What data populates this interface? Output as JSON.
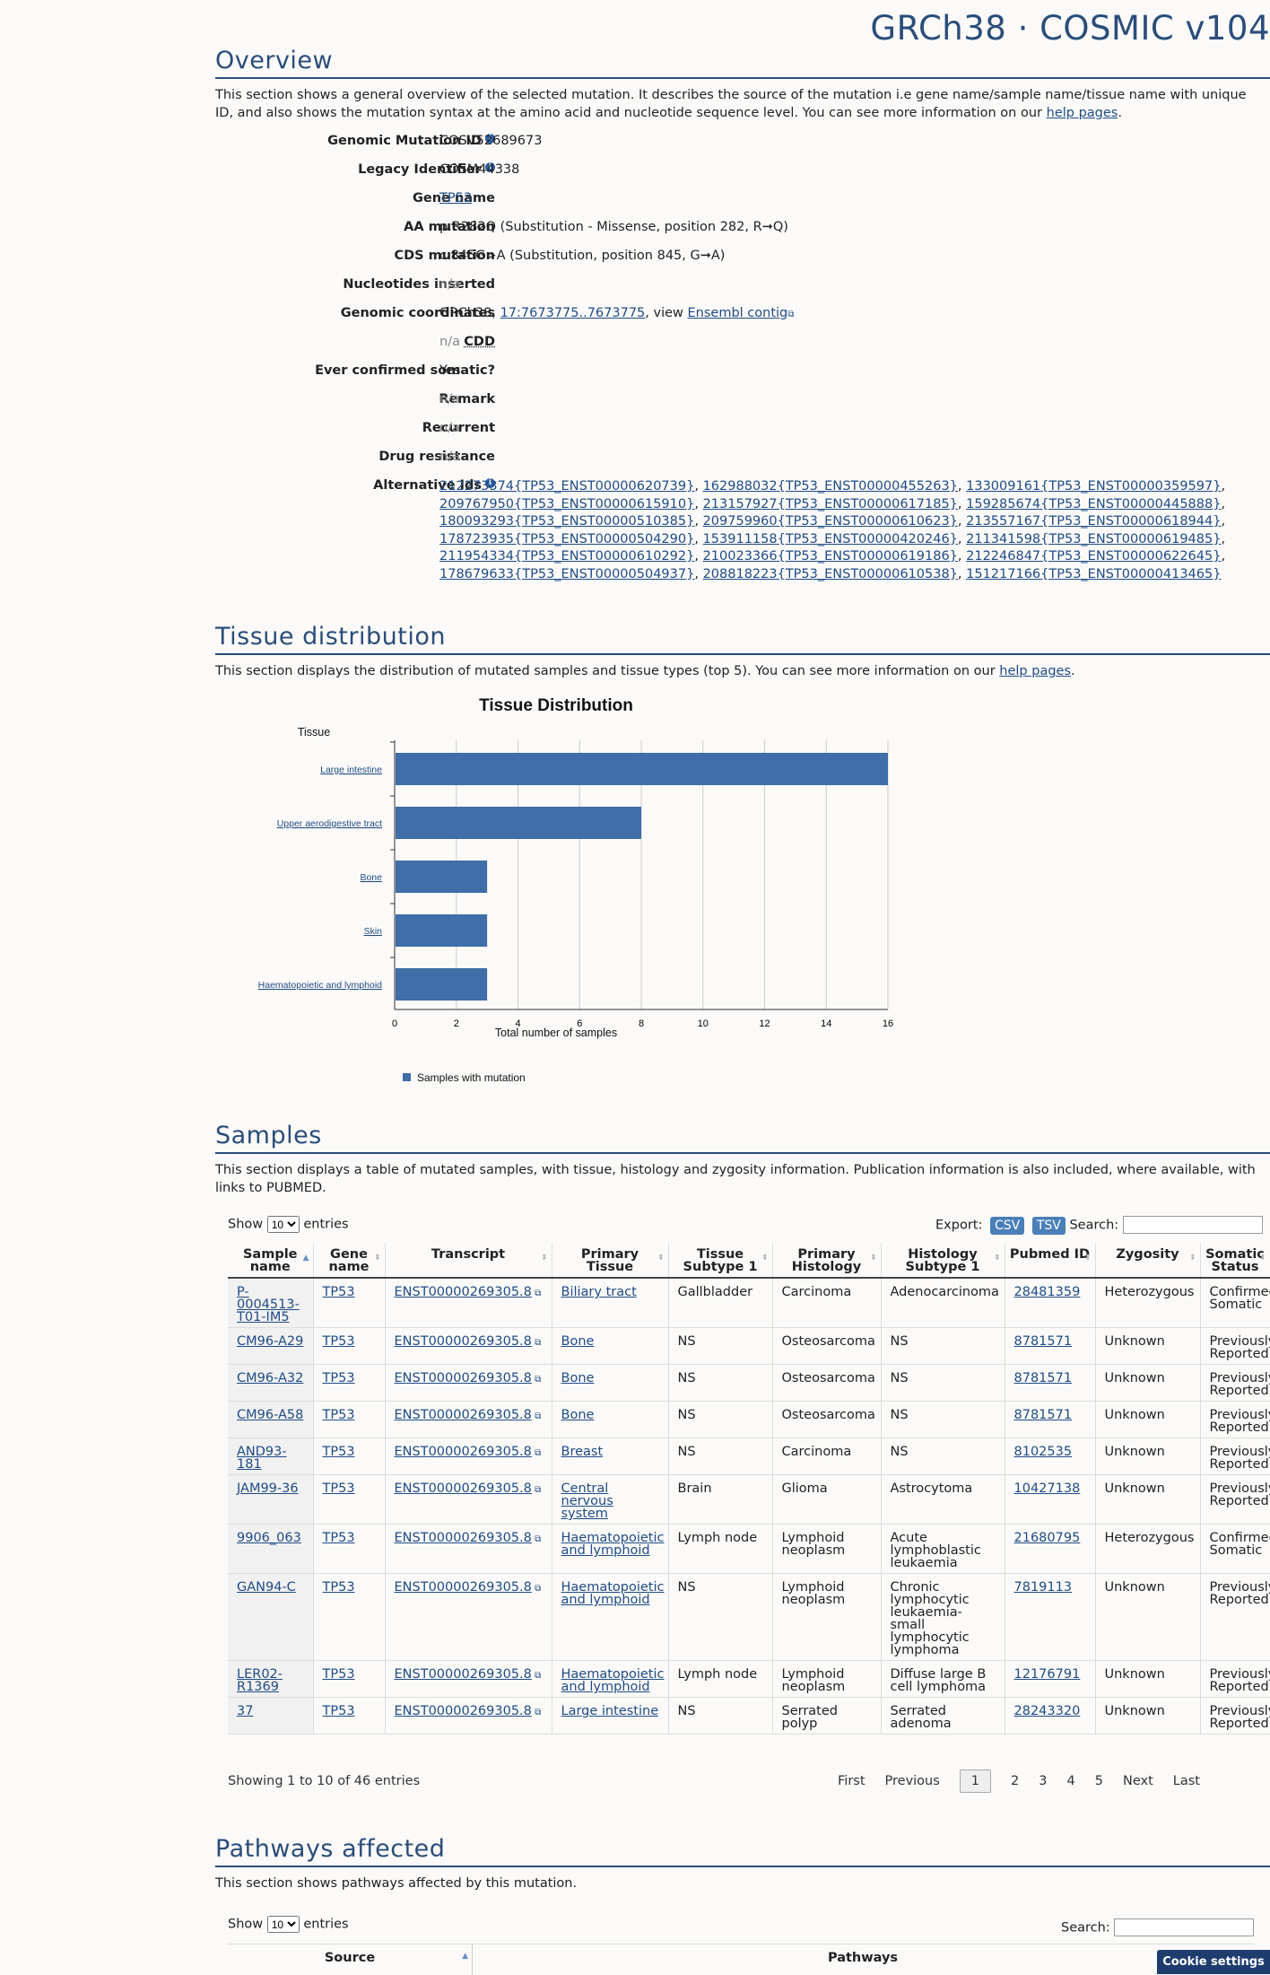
{
  "header": {
    "title": "GRCh38 · COSMIC v104"
  },
  "overview": {
    "heading": "Overview",
    "desc_main": "This section shows a general overview of the selected mutation. It describes the source of the mutation i.e gene name/sample name/tissue name with unique ID, and also shows the mutation syntax at the amino acid and nucleotide sequence level. You can see more information on our ",
    "desc_link": "help pages",
    "desc_end": ".",
    "rows": {
      "genomic_mutation_id": {
        "label": "Genomic Mutation ID",
        "value": "COSV52689673"
      },
      "legacy_identifier": {
        "label": "Legacy Identifier",
        "value": "COSM44338"
      },
      "gene_name": {
        "label": "Gene name",
        "value": "TP53"
      },
      "aa_mutation": {
        "label": "AA mutation",
        "value": "p.R282Q (Substitution - Missense, position 282, R➞Q)"
      },
      "cds_mutation": {
        "label": "CDS mutation",
        "value": "c.845G>A (Substitution, position 845, G➞A)"
      },
      "nucleotides_inserted": {
        "label": "Nucleotides inserted",
        "value": "n/a"
      },
      "genomic_coordinates": {
        "label": "Genomic coordinates",
        "prefix": "GRCh38, ",
        "coord_link": "17:7673775..7673775",
        "mid": ", view ",
        "ensembl_link": "Ensembl contig"
      },
      "cdd": {
        "label": "CDD",
        "value": "n/a"
      },
      "ever_confirmed": {
        "label": "Ever confirmed somatic?",
        "value": "Yes"
      },
      "remark": {
        "label": "Remark",
        "value": "n/a"
      },
      "recurrent": {
        "label": "Recurrent",
        "value": "n/a"
      },
      "drug_resistance": {
        "label": "Drug resistance",
        "value": "n/a"
      },
      "alternative_ids": {
        "label": "Alternative Ids"
      }
    },
    "alt_ids": [
      "212273374{TP53_ENST00000620739}",
      "162988032{TP53_ENST00000455263}",
      "133009161{TP53_ENST00000359597}",
      "209767950{TP53_ENST00000615910}",
      "213157927{TP53_ENST00000617185}",
      "159285674{TP53_ENST00000445888}",
      "180093293{TP53_ENST00000510385}",
      "209759960{TP53_ENST00000610623}",
      "213557167{TP53_ENST00000618944}",
      "178723935{TP53_ENST00000504290}",
      "153911158{TP53_ENST00000420246}",
      "211341598{TP53_ENST00000619485}",
      "211954334{TP53_ENST00000610292}",
      "210023366{TP53_ENST00000619186}",
      "212246847{TP53_ENST00000622645}",
      "178679633{TP53_ENST00000504937}",
      "208818223{TP53_ENST00000610538}",
      "151217166{TP53_ENST00000413465}"
    ]
  },
  "tissue": {
    "heading": "Tissue distribution",
    "desc_main": "This section displays the distribution of mutated samples and tissue types (top 5). You can see more information on our ",
    "desc_link": "help pages",
    "desc_end": "."
  },
  "chart_data": {
    "type": "bar",
    "orientation": "horizontal",
    "title": "Tissue Distribution",
    "ylabel": "Tissue",
    "xlabel": "Total number of samples",
    "categories": [
      "Large intestine",
      "Upper aerodigestive tract",
      "Bone",
      "Skin",
      "Haematopoietic and lymphoid"
    ],
    "series": [
      {
        "name": "Samples with mutation",
        "values": [
          16,
          8,
          3,
          3,
          3
        ]
      }
    ],
    "xlim": [
      0,
      16
    ],
    "xticks": [
      "0",
      "2",
      "4",
      "6",
      "8",
      "10",
      "12",
      "14",
      "16"
    ],
    "grid": true,
    "legend_position": "bottom-left",
    "bar_color": "#3f6ea8"
  },
  "samples": {
    "heading": "Samples",
    "desc": "This section displays a table of mutated samples, with tissue, histology and zygosity information. Publication information is also included, where available, with links to PUBMED.",
    "show_label": "Show",
    "show_value": "10",
    "entries_label": "entries",
    "export_label": "Export:",
    "csv_label": "CSV",
    "tsv_label": "TSV",
    "search_label": "Search:",
    "columns": [
      "Sample name",
      "Gene name",
      "Transcript",
      "Primary Tissue",
      "Tissue Subtype 1",
      "Primary Histology",
      "Histology Subtype 1",
      "Pubmed ID",
      "Zygosity",
      "Somatic Status"
    ],
    "rows": [
      [
        "P-0004513-T01-IM5",
        "TP53",
        "ENST00000269305.8",
        "Biliary tract",
        "Gallbladder",
        "Carcinoma",
        "Adenocarcinoma",
        "28481359",
        "Heterozygous",
        "Confirmed Somatic"
      ],
      [
        "CM96-A29",
        "TP53",
        "ENST00000269305.8",
        "Bone",
        "NS",
        "Osteosarcoma",
        "NS",
        "8781571",
        "Unknown",
        "Previously Reported"
      ],
      [
        "CM96-A32",
        "TP53",
        "ENST00000269305.8",
        "Bone",
        "NS",
        "Osteosarcoma",
        "NS",
        "8781571",
        "Unknown",
        "Previously Reported"
      ],
      [
        "CM96-A58",
        "TP53",
        "ENST00000269305.8",
        "Bone",
        "NS",
        "Osteosarcoma",
        "NS",
        "8781571",
        "Unknown",
        "Previously Reported"
      ],
      [
        "AND93-181",
        "TP53",
        "ENST00000269305.8",
        "Breast",
        "NS",
        "Carcinoma",
        "NS",
        "8102535",
        "Unknown",
        "Previously Reported"
      ],
      [
        "JAM99-36",
        "TP53",
        "ENST00000269305.8",
        "Central nervous system",
        "Brain",
        "Glioma",
        "Astrocytoma",
        "10427138",
        "Unknown",
        "Previously Reported"
      ],
      [
        "9906_063",
        "TP53",
        "ENST00000269305.8",
        "Haematopoietic and lymphoid",
        "Lymph node",
        "Lymphoid neoplasm",
        "Acute lymphoblastic leukaemia",
        "21680795",
        "Heterozygous",
        "Confirmed Somatic"
      ],
      [
        "GAN94-C",
        "TP53",
        "ENST00000269305.8",
        "Haematopoietic and lymphoid",
        "NS",
        "Lymphoid neoplasm",
        "Chronic lymphocytic leukaemia-small lymphocytic lymphoma",
        "7819113",
        "Unknown",
        "Previously Reported"
      ],
      [
        "LER02-R1369",
        "TP53",
        "ENST00000269305.8",
        "Haematopoietic and lymphoid",
        "Lymph node",
        "Lymphoid neoplasm",
        "Diffuse large B cell lymphoma",
        "12176791",
        "Unknown",
        "Previously Reported"
      ],
      [
        "37",
        "TP53",
        "ENST00000269305.8",
        "Large intestine",
        "NS",
        "Serrated polyp",
        "Serrated adenoma",
        "28243320",
        "Unknown",
        "Previously Reported"
      ]
    ],
    "info": "Showing 1 to 10 of 46 entries",
    "pager": {
      "first": "First",
      "previous": "Previous",
      "pages": [
        "1",
        "2",
        "3",
        "4",
        "5"
      ],
      "next": "Next",
      "last": "Last"
    }
  },
  "pathways": {
    "heading": "Pathways affected",
    "desc": "This section shows pathways affected by this mutation.",
    "show_label": "Show",
    "show_value": "10",
    "entries_label": "entries",
    "search_label": "Search:",
    "columns": [
      "Source",
      "Pathways"
    ]
  },
  "cookie": {
    "label": "Cookie settings"
  }
}
